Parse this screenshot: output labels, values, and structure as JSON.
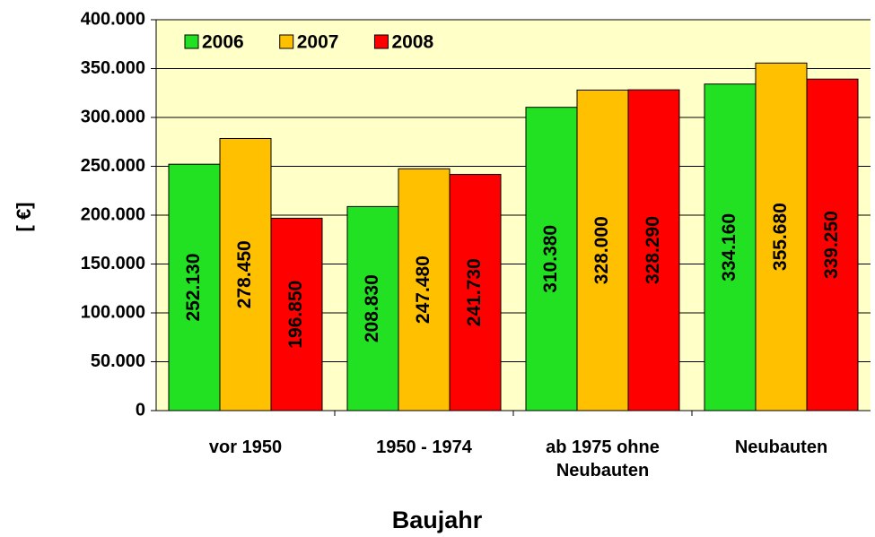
{
  "chart_data": {
    "type": "bar",
    "x_label": "Baujahr",
    "y_label": "[ €]",
    "categories": [
      "vor 1950",
      "1950 - 1974",
      "ab 1975 ohne Neubauten",
      "Neubauten"
    ],
    "series": [
      {
        "name": "2006",
        "color": "#22e022",
        "values": [
          252130,
          208830,
          310380,
          334160
        ],
        "value_labels": [
          "252.130",
          "208.830",
          "310.380",
          "334.160"
        ]
      },
      {
        "name": "2007",
        "color": "#ffc000",
        "values": [
          278450,
          247480,
          328000,
          355680
        ],
        "value_labels": [
          "278.450",
          "247.480",
          "328.000",
          "355.680"
        ]
      },
      {
        "name": "2008",
        "color": "#ff0000",
        "values": [
          196850,
          241730,
          328290,
          339250
        ],
        "value_labels": [
          "196.850",
          "241.730",
          "328.290",
          "339.250"
        ]
      }
    ],
    "ylim": [
      0,
      400000
    ],
    "yticks": [
      0,
      {
        "value": 50000,
        "label": "50.000"
      },
      {
        "value": 100000,
        "label": "100.000"
      },
      {
        "value": 150000,
        "label": "150.000"
      },
      {
        "value": 200000,
        "label": "200.000"
      },
      {
        "value": 250000,
        "label": "250.000"
      },
      {
        "value": 300000,
        "label": "300.000"
      },
      {
        "value": 350000,
        "label": "350.000"
      },
      {
        "value": 400000,
        "label": "400.000"
      }
    ],
    "grid": true,
    "legend": "top-left",
    "plot_background": "#ffffc8"
  }
}
